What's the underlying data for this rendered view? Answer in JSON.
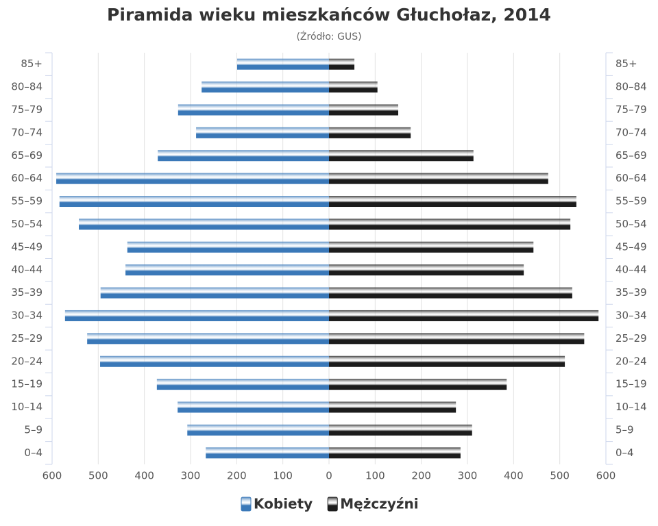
{
  "chart_data": {
    "type": "pyramid",
    "title": "Piramida wieku mieszkańców Głuchołaz, 2014",
    "subtitle": "(Źródło: GUS)",
    "categories": [
      "0–4",
      "5–9",
      "10–14",
      "15–19",
      "20–24",
      "25–29",
      "30–34",
      "35–39",
      "40–44",
      "45–49",
      "50–54",
      "55–59",
      "60–64",
      "65–69",
      "70–74",
      "75–79",
      "80–84",
      "85+"
    ],
    "series": [
      {
        "name": "Kobiety",
        "color": "#3a78b8",
        "side": "left",
        "values": [
          267,
          307,
          328,
          373,
          496,
          524,
          572,
          495,
          441,
          437,
          542,
          584,
          591,
          371,
          288,
          327,
          276,
          199
        ]
      },
      {
        "name": "Mężczyźni",
        "color": "#1c1c1c",
        "side": "right",
        "values": [
          285,
          310,
          275,
          385,
          511,
          553,
          584,
          527,
          422,
          443,
          523,
          536,
          475,
          313,
          177,
          150,
          105,
          55
        ]
      }
    ],
    "xlim": [
      -600,
      600
    ],
    "xticks": [
      {
        "value": -600,
        "label": "600"
      },
      {
        "value": -500,
        "label": "500"
      },
      {
        "value": -400,
        "label": "400"
      },
      {
        "value": -300,
        "label": "300"
      },
      {
        "value": -200,
        "label": "200"
      },
      {
        "value": -100,
        "label": "100"
      },
      0,
      100,
      200,
      300,
      400,
      500,
      600
    ],
    "grid": true
  }
}
